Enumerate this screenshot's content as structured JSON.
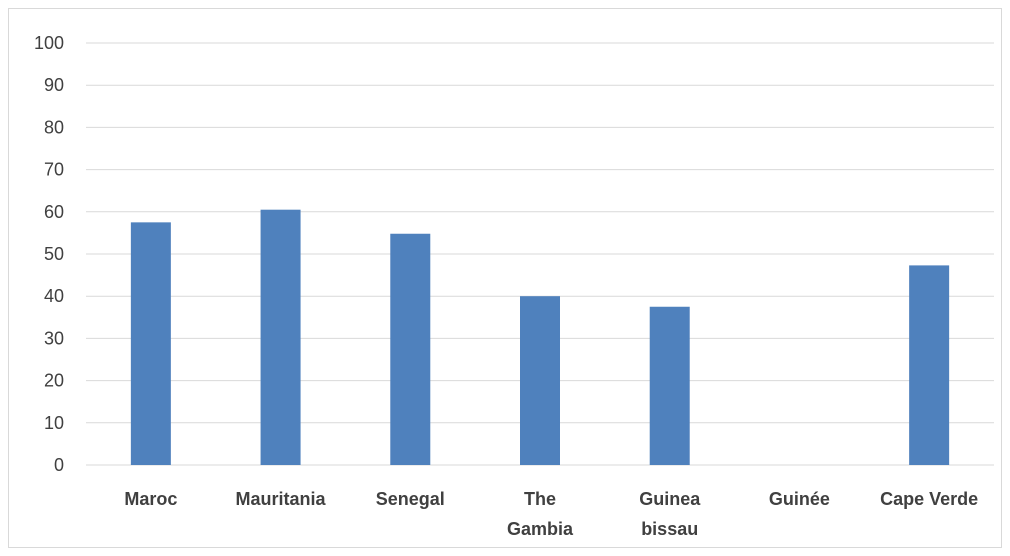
{
  "chart_data": {
    "type": "bar",
    "title": "",
    "xlabel": "",
    "ylabel": "",
    "categories": [
      [
        "Maroc"
      ],
      [
        "Mauritania"
      ],
      [
        "Senegal"
      ],
      [
        "The",
        "Gambia"
      ],
      [
        "Guinea",
        "bissau"
      ],
      [
        "Guinée"
      ],
      [
        "Cape Verde"
      ]
    ],
    "values": [
      57.5,
      60.5,
      54.8,
      40.0,
      37.5,
      0,
      47.3
    ],
    "ylim": [
      0,
      100
    ],
    "yticks": [
      "0",
      "10",
      "20",
      "30",
      "40",
      "50",
      "60",
      "70",
      "80",
      "90",
      "100"
    ],
    "grid": true,
    "legend": "none",
    "bar_color": "#4F81BD",
    "grid_color": "#D9D9D9",
    "text_color": "#404040"
  }
}
